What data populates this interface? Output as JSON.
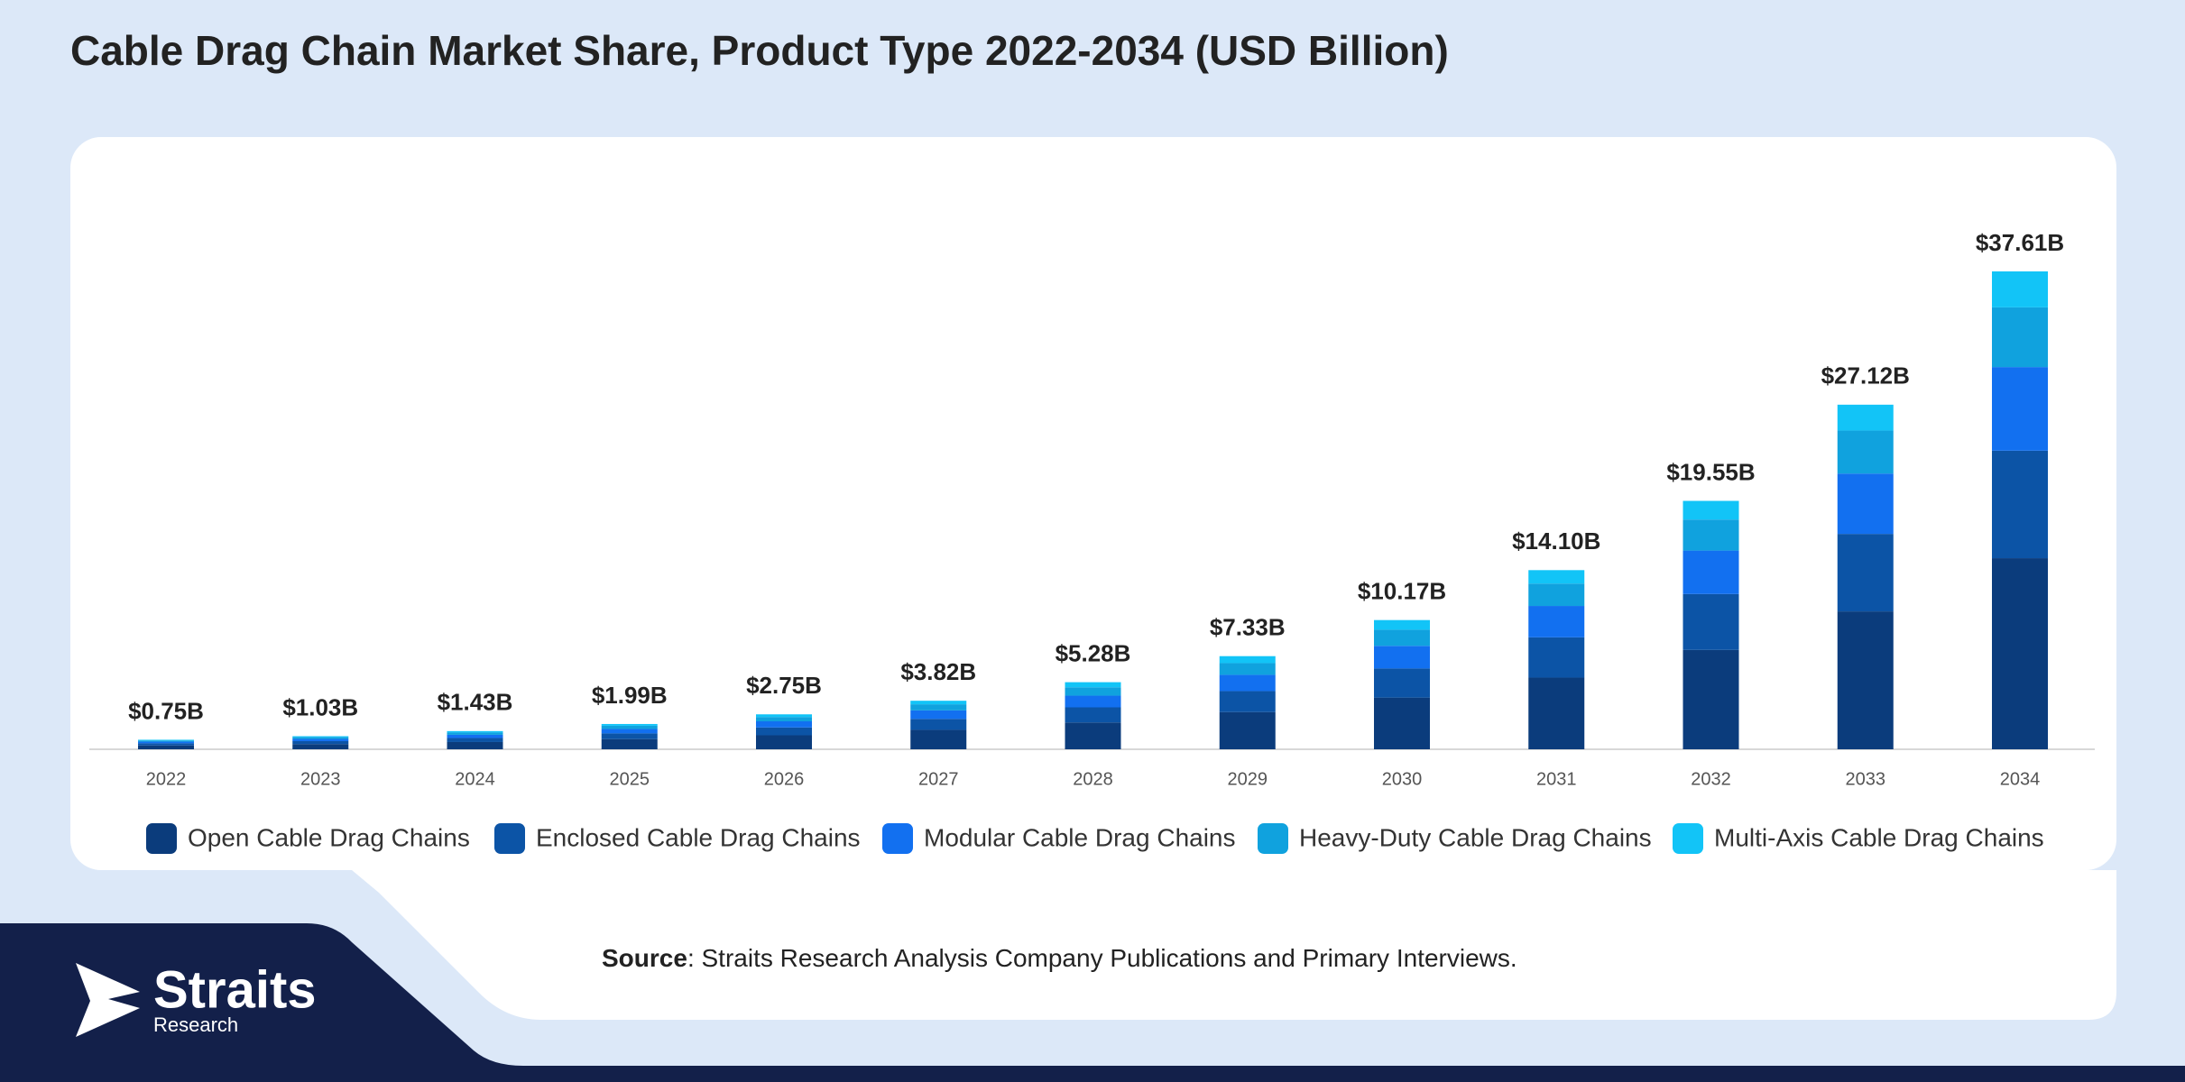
{
  "chart_data": {
    "type": "stacked_bar",
    "title": "Cable Drag Chain Market Share, Product Type 2022-2034 (USD Billion)",
    "categories": [
      "2022",
      "2023",
      "2024",
      "2025",
      "2026",
      "2027",
      "2028",
      "2029",
      "2030",
      "2031",
      "2032",
      "2033",
      "2034"
    ],
    "series": [
      {
        "name": "Open Cable Drag Chains",
        "color": "#0b3c7c",
        "values": [
          0.3,
          0.41,
          0.57,
          0.8,
          1.1,
          1.53,
          2.11,
          2.93,
          4.07,
          5.64,
          7.82,
          10.85,
          15.04
        ]
      },
      {
        "name": "Enclosed Cable Drag Chains",
        "color": "#0c54a6",
        "values": [
          0.17,
          0.23,
          0.32,
          0.45,
          0.62,
          0.86,
          1.19,
          1.65,
          2.29,
          3.17,
          4.4,
          6.1,
          8.46
        ]
      },
      {
        "name": "Modular Cable Drag Chains",
        "color": "#1270f0",
        "values": [
          0.13,
          0.18,
          0.25,
          0.35,
          0.48,
          0.67,
          0.92,
          1.28,
          1.78,
          2.47,
          3.42,
          4.75,
          6.58
        ]
      },
      {
        "name": "Heavy-Duty Cable Drag Chains",
        "color": "#10a2de",
        "values": [
          0.09,
          0.13,
          0.18,
          0.25,
          0.34,
          0.48,
          0.66,
          0.92,
          1.27,
          1.76,
          2.44,
          3.39,
          4.7
        ]
      },
      {
        "name": "Multi-Axis Cable Drag Chains",
        "color": "#12c4f7",
        "values": [
          0.06,
          0.08,
          0.11,
          0.14,
          0.21,
          0.28,
          0.4,
          0.55,
          0.76,
          1.06,
          1.47,
          2.03,
          2.83
        ]
      }
    ],
    "totals": {
      "values": [
        0.75,
        1.03,
        1.43,
        1.99,
        2.75,
        3.82,
        5.28,
        7.33,
        10.17,
        14.1,
        19.55,
        27.12,
        37.61
      ],
      "value_labels": [
        "$0.75B",
        "$1.03B",
        "$1.43B",
        "$1.99B",
        "$2.75B",
        "$3.82B",
        "$5.28B",
        "$7.33B",
        "$10.17B",
        "$14.10B",
        "$19.55B",
        "$27.12B",
        "$37.61B"
      ]
    }
  },
  "footer": {
    "source_label": "Source",
    "source_text": ": Straits Research Analysis Company Publications and Primary Interviews.",
    "logo_name": "Straits",
    "logo_sub": "Research"
  }
}
